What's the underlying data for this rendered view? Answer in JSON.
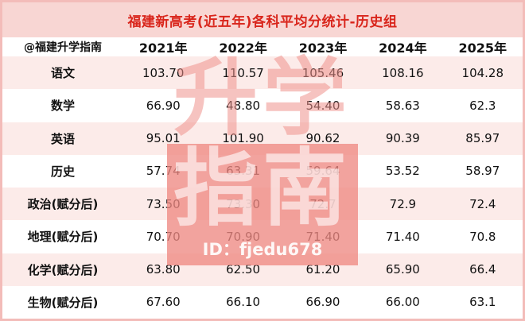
{
  "chart_data": {
    "type": "table",
    "title": "福建新高考(近五年)各科平均分统计-历史组",
    "corner_label": "@福建升学指南",
    "columns": [
      "2021年",
      "2022年",
      "2023年",
      "2024年",
      "2025年"
    ],
    "rows": [
      {
        "label": "语文",
        "values": [
          "103.70",
          "110.57",
          "105.46",
          "108.16",
          "104.28"
        ]
      },
      {
        "label": "数学",
        "values": [
          "66.90",
          "48.80",
          "54.40",
          "58.63",
          "62.3"
        ]
      },
      {
        "label": "英语",
        "values": [
          "95.01",
          "101.90",
          "90.62",
          "90.39",
          "85.97"
        ]
      },
      {
        "label": "历史",
        "values": [
          "57.74",
          "63.31",
          "59.64",
          "53.52",
          "58.97"
        ]
      },
      {
        "label": "政治(赋分后)",
        "values": [
          "73.50",
          "73.30",
          "72.7",
          "72.9",
          "72.4"
        ]
      },
      {
        "label": "地理(赋分后)",
        "values": [
          "70.70",
          "70.90",
          "71.40",
          "71.40",
          "70.8"
        ]
      },
      {
        "label": "化学(赋分后)",
        "values": [
          "63.80",
          "62.50",
          "61.20",
          "65.90",
          "66.4"
        ]
      },
      {
        "label": "生物(赋分后)",
        "values": [
          "67.60",
          "66.10",
          "66.90",
          "66.00",
          "63.1"
        ]
      }
    ]
  },
  "watermark": {
    "line1": "升学",
    "line2": "指南",
    "id_text": "ID：fjedu678"
  },
  "colors": {
    "title_text": "#d9261c",
    "title_bg": "#f8d6d3",
    "row_alt_bg": "#fcebe9",
    "border": "#f3bcb9",
    "watermark_pink": "#ee8983"
  }
}
